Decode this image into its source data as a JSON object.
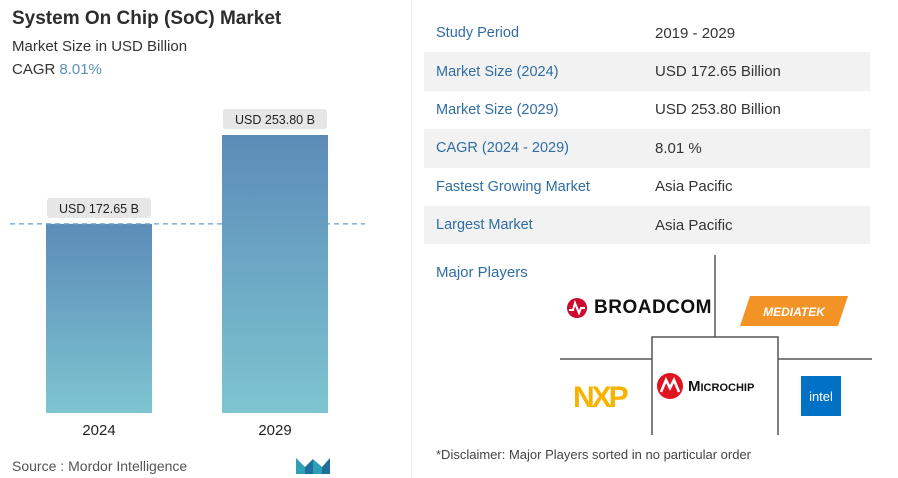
{
  "title": "System On Chip (SoC) Market",
  "subtitle": "Market Size in USD Billion",
  "cagr_label": "CAGR",
  "cagr_value": "8.01%",
  "source_label": "Source :",
  "source_name": "Mordor Intelligence",
  "chart_data": {
    "type": "bar",
    "categories": [
      "2024",
      "2029"
    ],
    "values": [
      172.65,
      253.8
    ],
    "data_labels": [
      "USD 172.65 B",
      "USD 253.80 B"
    ],
    "title": "System On Chip (SoC) Market",
    "subtitle": "Market Size in USD Billion",
    "ylim": [
      0,
      300
    ],
    "grid": false,
    "reference_line": "dashed line at 2024 value",
    "bar_gradient": [
      "#5b8cb8",
      "#7ec5d1"
    ]
  },
  "stats": [
    {
      "key": "Study Period",
      "value": "2019 - 2029"
    },
    {
      "key": "Market Size (2024)",
      "value": "USD 172.65 Billion"
    },
    {
      "key": "Market Size (2029)",
      "value": "USD 253.80 Billion"
    },
    {
      "key": "CAGR (2024 - 2029)",
      "value": "8.01 %"
    },
    {
      "key": "Fastest Growing Market",
      "value": "Asia Pacific"
    },
    {
      "key": "Largest Market",
      "value": "Asia Pacific"
    }
  ],
  "major_players_label": "Major Players",
  "players": {
    "broadcom": "BROADCOM",
    "mediatek": "MEDIATEK",
    "nxp": "NXP",
    "microchip": "Microchip",
    "intel": "intel"
  },
  "disclaimer": "*Disclaimer: Major Players sorted in no particular order",
  "colors": {
    "accent": "#2f6da3",
    "label_bg": "#e6e6e6",
    "dash": "#6a9ec9"
  }
}
